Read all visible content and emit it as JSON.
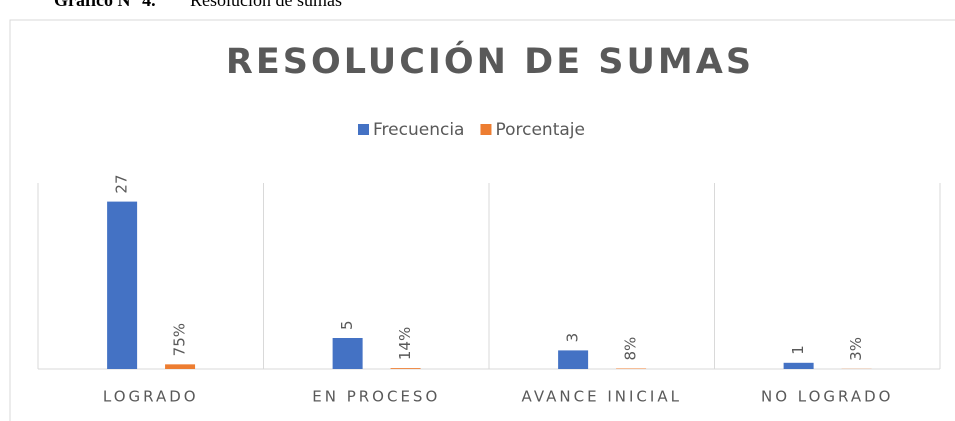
{
  "caption_label": "Gráfico N° 4.",
  "caption_text": "Resolución de sumas",
  "chart_data": {
    "type": "bar",
    "title": "RESOLUCIÓN DE SUMAS",
    "categories": [
      "LOGRADO",
      "EN PROCESO",
      "AVANCE INICIAL",
      "NO LOGRADO"
    ],
    "series": [
      {
        "name": "Frecuencia",
        "color": "#4472c4",
        "values": [
          27,
          5,
          3,
          1
        ]
      },
      {
        "name": "Porcentaje",
        "color": "#ed7d31",
        "values": [
          0.75,
          0.14,
          0.08,
          0.03
        ],
        "value_labels": [
          "75%",
          "14%",
          "8%",
          "3%"
        ]
      }
    ],
    "ylim": [
      0,
      30
    ],
    "legend": "top"
  }
}
